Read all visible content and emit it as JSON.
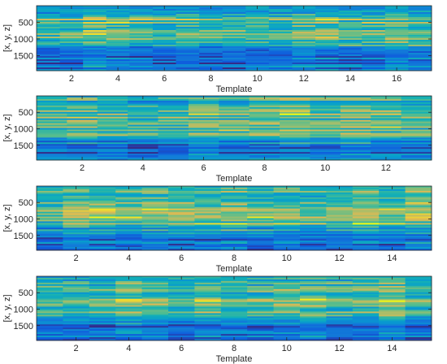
{
  "chart_data": [
    {
      "type": "heatmap",
      "xlabel": "Template",
      "ylabel": "[x, y, z]",
      "xlim": [
        0.5,
        17.5
      ],
      "ylim": [
        1950,
        1
      ],
      "x_ticks": [
        2,
        4,
        6,
        8,
        10,
        12,
        14,
        16
      ],
      "y_ticks": [
        500,
        1000,
        1500
      ],
      "columns": 17,
      "colormap": "parula",
      "grid": false
    },
    {
      "type": "heatmap",
      "xlabel": "Template",
      "ylabel": "[x, y, z]",
      "xlim": [
        0.5,
        13.5
      ],
      "ylim": [
        1950,
        1
      ],
      "x_ticks": [
        2,
        4,
        6,
        8,
        10,
        12
      ],
      "y_ticks": [
        500,
        1000,
        1500
      ],
      "columns": 13,
      "colormap": "parula",
      "grid": false
    },
    {
      "type": "heatmap",
      "xlabel": "Template",
      "ylabel": "[x, y, z]",
      "xlim": [
        0.5,
        15.5
      ],
      "ylim": [
        1950,
        1
      ],
      "x_ticks": [
        2,
        4,
        6,
        8,
        10,
        12,
        14
      ],
      "y_ticks": [
        500,
        1000,
        1500
      ],
      "columns": 15,
      "colormap": "parula",
      "grid": false
    },
    {
      "type": "heatmap",
      "xlabel": "Template",
      "ylabel": "[x, y, z]",
      "xlim": [
        0.5,
        15.5
      ],
      "ylim": [
        1950,
        1
      ],
      "x_ticks": [
        2,
        4,
        6,
        8,
        10,
        12,
        14
      ],
      "y_ticks": [
        500,
        1000,
        1500
      ],
      "columns": 15,
      "colormap": "parula",
      "grid": false
    }
  ]
}
